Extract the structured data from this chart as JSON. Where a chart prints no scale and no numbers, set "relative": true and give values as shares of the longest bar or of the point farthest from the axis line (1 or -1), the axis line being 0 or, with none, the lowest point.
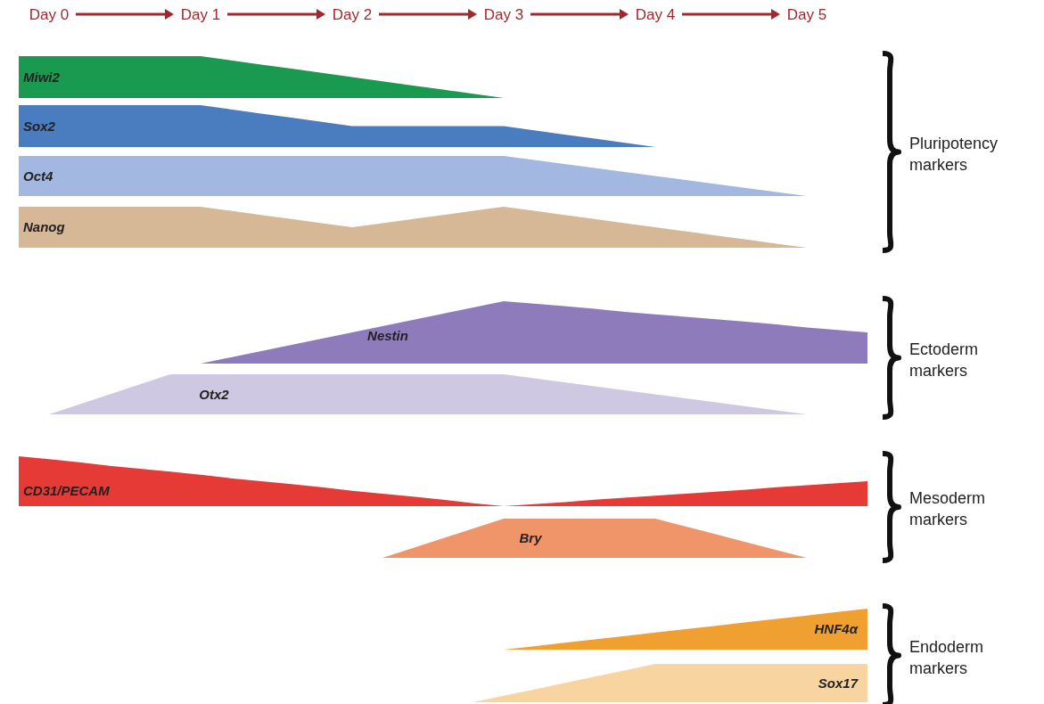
{
  "chart_data": [
    {
      "type": "area",
      "relative": true,
      "categories": [
        null,
        "Day 0",
        null,
        null,
        null,
        null,
        "Day 1",
        null,
        null,
        null,
        null,
        "Day 2",
        null,
        null,
        null,
        null,
        "Day 3",
        null,
        null,
        null,
        null,
        "Day 4",
        null,
        null,
        null,
        null,
        "Day 5",
        null,
        null
      ],
      "annotations": [
        "Pluripotency markers"
      ],
      "series": [
        {
          "name": "Miwi2",
          "color": "#1a9a50",
          "values": [
            1,
            1,
            1,
            1,
            1,
            1,
            1,
            0.9,
            0.8,
            0.7,
            0.6,
            0.5,
            0.4,
            0.3,
            0.2,
            0.1,
            0,
            null,
            null,
            null,
            null,
            null,
            null,
            null,
            null,
            null,
            null,
            null,
            null
          ]
        }
      ]
    },
    {
      "type": "area",
      "relative": true,
      "series": [
        {
          "name": "Sox2",
          "color": "#4a7cc0",
          "values": [
            1,
            1,
            1,
            1,
            1,
            1,
            1,
            0.9,
            0.8,
            0.7,
            0.6,
            0.5,
            0.5,
            0.5,
            0.5,
            0.5,
            0.5,
            0.4,
            0.3,
            0.2,
            0.1,
            0,
            null,
            null,
            null,
            null,
            null,
            null,
            null
          ]
        }
      ]
    },
    {
      "type": "area",
      "relative": true,
      "series": [
        {
          "name": "Oct4",
          "color": "#a3b8e0",
          "values": [
            1,
            1,
            1,
            1,
            1,
            1,
            1,
            1,
            1,
            1,
            1,
            1,
            1,
            1,
            1,
            1,
            1,
            0.9,
            0.8,
            0.7,
            0.6,
            0.5,
            0.4,
            0.3,
            0.2,
            0.1,
            0,
            null,
            null
          ]
        }
      ]
    },
    {
      "type": "area",
      "relative": true,
      "series": [
        {
          "name": "Nanog",
          "color": "#d6b896",
          "values": [
            1,
            1,
            1,
            1,
            1,
            1,
            1,
            0.9,
            0.8,
            0.7,
            0.6,
            0.5,
            0.6,
            0.7,
            0.8,
            0.9,
            1,
            0.9,
            0.8,
            0.7,
            0.6,
            0.5,
            0.4,
            0.3,
            0.2,
            0.1,
            0,
            null,
            null
          ]
        }
      ]
    },
    {
      "type": "area",
      "relative": true,
      "annotations": [
        "Ectoderm markers"
      ],
      "series": [
        {
          "name": "Nestin",
          "color": "#8e7bbb",
          "values": [
            null,
            null,
            null,
            null,
            null,
            null,
            0,
            0.1,
            0.2,
            0.3,
            0.4,
            0.5,
            0.6,
            0.7,
            0.8,
            0.9,
            1,
            0.96,
            0.92,
            0.88,
            0.83,
            0.79,
            0.75,
            0.71,
            0.67,
            0.63,
            0.58,
            0.54,
            0.5
          ]
        }
      ]
    },
    {
      "type": "area",
      "relative": true,
      "series": [
        {
          "name": "Otx2",
          "color": "#cfc8e2",
          "values": [
            null,
            0,
            0.25,
            0.5,
            0.75,
            1,
            1,
            1,
            1,
            1,
            1,
            1,
            1,
            1,
            1,
            1,
            1,
            0.9,
            0.8,
            0.7,
            0.6,
            0.5,
            0.4,
            0.3,
            0.2,
            0.1,
            0,
            null,
            null
          ]
        }
      ]
    },
    {
      "type": "area",
      "relative": true,
      "annotations": [
        "Mesoderm markers"
      ],
      "series": [
        {
          "name": "CD31/PECAM",
          "color": "#e63a36",
          "values": [
            1,
            0.94,
            0.88,
            0.81,
            0.75,
            0.69,
            0.63,
            0.56,
            0.5,
            0.44,
            0.38,
            0.31,
            0.25,
            0.19,
            0.13,
            0.06,
            0,
            0.04,
            0.08,
            0.13,
            0.17,
            0.21,
            0.25,
            0.29,
            0.33,
            0.38,
            0.42,
            0.46,
            0.5
          ]
        }
      ]
    },
    {
      "type": "area",
      "relative": true,
      "series": [
        {
          "name": "Bry",
          "color": "#f0946a",
          "values": [
            null,
            null,
            null,
            null,
            null,
            null,
            null,
            null,
            null,
            null,
            null,
            null,
            0,
            0.25,
            0.5,
            0.75,
            1,
            1,
            1,
            1,
            1,
            1,
            0.8,
            0.6,
            0.4,
            0.2,
            0,
            null,
            null
          ]
        }
      ]
    },
    {
      "type": "area",
      "relative": true,
      "annotations": [
        "Endoderm markers"
      ],
      "series": [
        {
          "name": "HNF4α",
          "color": "#f0a030",
          "values": [
            null,
            null,
            null,
            null,
            null,
            null,
            null,
            null,
            null,
            null,
            null,
            null,
            null,
            null,
            null,
            null,
            0,
            0.08,
            0.17,
            0.25,
            0.33,
            0.42,
            0.5,
            0.58,
            0.67,
            0.75,
            0.83,
            0.92,
            1
          ]
        }
      ]
    },
    {
      "type": "area",
      "relative": true,
      "series": [
        {
          "name": "Sox17",
          "color": "#f8d4a0",
          "values": [
            null,
            null,
            null,
            null,
            null,
            null,
            null,
            null,
            null,
            null,
            null,
            null,
            null,
            null,
            null,
            0,
            0.17,
            0.33,
            0.5,
            0.67,
            0.83,
            1,
            1,
            1,
            1,
            1,
            1,
            1,
            1
          ]
        }
      ]
    }
  ]
}
